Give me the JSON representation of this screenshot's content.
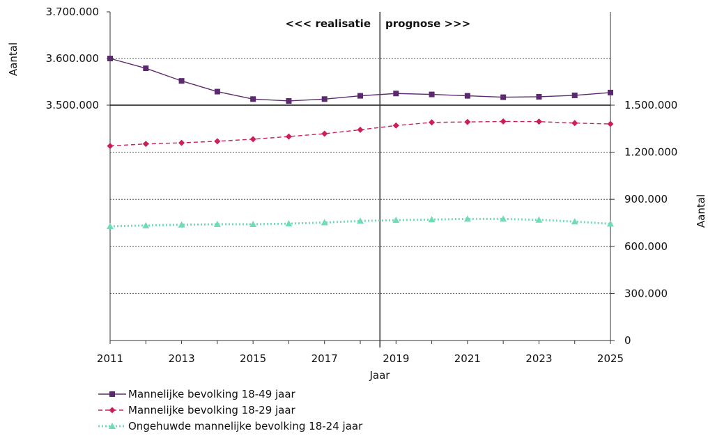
{
  "chart_data": {
    "type": "line",
    "x": [
      2011,
      2012,
      2013,
      2014,
      2015,
      2016,
      2017,
      2018,
      2019,
      2020,
      2021,
      2022,
      2023,
      2024,
      2025
    ],
    "x_ticks": [
      "2011",
      "2013",
      "2015",
      "2017",
      "2019",
      "2021",
      "2023",
      "2025"
    ],
    "xlim": [
      2011,
      2025
    ],
    "xlabel": "Jaar",
    "ylabel_left": "Aantal",
    "ylabel_right": "Aantal",
    "ylim_left": [
      3500000,
      3700000
    ],
    "yticks_left": [
      "3.500.000",
      "3.600.000",
      "3.700.000"
    ],
    "ylim_right": [
      0,
      1500000
    ],
    "yticks_right": [
      "0",
      "300.000",
      "600.000",
      "900.000",
      "1.200.000",
      "1.500.000"
    ],
    "divider_x": 2018.55,
    "divider_labels": {
      "left": "<<< realisatie",
      "right": "prognose >>>"
    },
    "grid": true,
    "legend_position": "bottom-left",
    "series": [
      {
        "name": "Mannelijke bevolking 18-49 jaar",
        "axis": "left",
        "color": "#5b2a6e",
        "marker": "square",
        "dash": "solid",
        "values": [
          3600000,
          3579000,
          3552000,
          3529000,
          3513000,
          3509000,
          3513000,
          3520000,
          3525000,
          3523000,
          3520000,
          3517000,
          3518000,
          3521000,
          3527000
        ]
      },
      {
        "name": "Mannelijke bevolking 18-29 jaar",
        "axis": "right",
        "color": "#cc1f5a",
        "marker": "diamond",
        "dash": "dashed",
        "values": [
          1240000,
          1253000,
          1260000,
          1270000,
          1283000,
          1300000,
          1318000,
          1343000,
          1370000,
          1390000,
          1393000,
          1396000,
          1395000,
          1386000,
          1380000
        ]
      },
      {
        "name": "Ongehuwde mannelijke bevolking 18-24 jaar",
        "axis": "right",
        "color": "#6fdcb4",
        "marker": "triangle",
        "dash": "dotted",
        "values": [
          728000,
          733000,
          738000,
          741000,
          741000,
          745000,
          752000,
          762000,
          767000,
          771000,
          775000,
          775000,
          769000,
          758000,
          744000
        ]
      }
    ]
  }
}
